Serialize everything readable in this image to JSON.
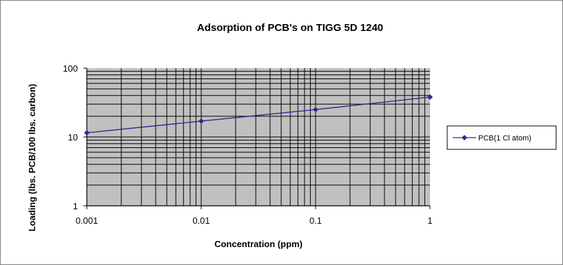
{
  "chart_data": {
    "type": "line",
    "title": "Adsorption of PCB's on TIGG 5D 1240",
    "xlabel": "Concentration (ppm)",
    "ylabel": "Loading (lbs. PCB/100 lbs. carbon)",
    "x_scale": "log",
    "y_scale": "log",
    "xlim": [
      0.001,
      1
    ],
    "ylim": [
      1,
      100
    ],
    "x_ticks": [
      0.001,
      0.01,
      0.1,
      1
    ],
    "x_tick_labels": [
      "0.001",
      "0.01",
      "0.1",
      "1"
    ],
    "y_ticks": [
      1,
      10,
      100
    ],
    "y_tick_labels": [
      "1",
      "10",
      "100"
    ],
    "grid": true,
    "legend_position": "right",
    "series": [
      {
        "name": "PCB(1 Cl atom)",
        "color": "#2b2b8c",
        "marker": "diamond",
        "x": [
          0.001,
          0.01,
          0.1,
          1
        ],
        "y": [
          11.5,
          17,
          25,
          38
        ]
      }
    ],
    "colors": {
      "plot_background": "#c0c0c0",
      "grid": "#000000",
      "line": "#2b2b8c"
    }
  }
}
